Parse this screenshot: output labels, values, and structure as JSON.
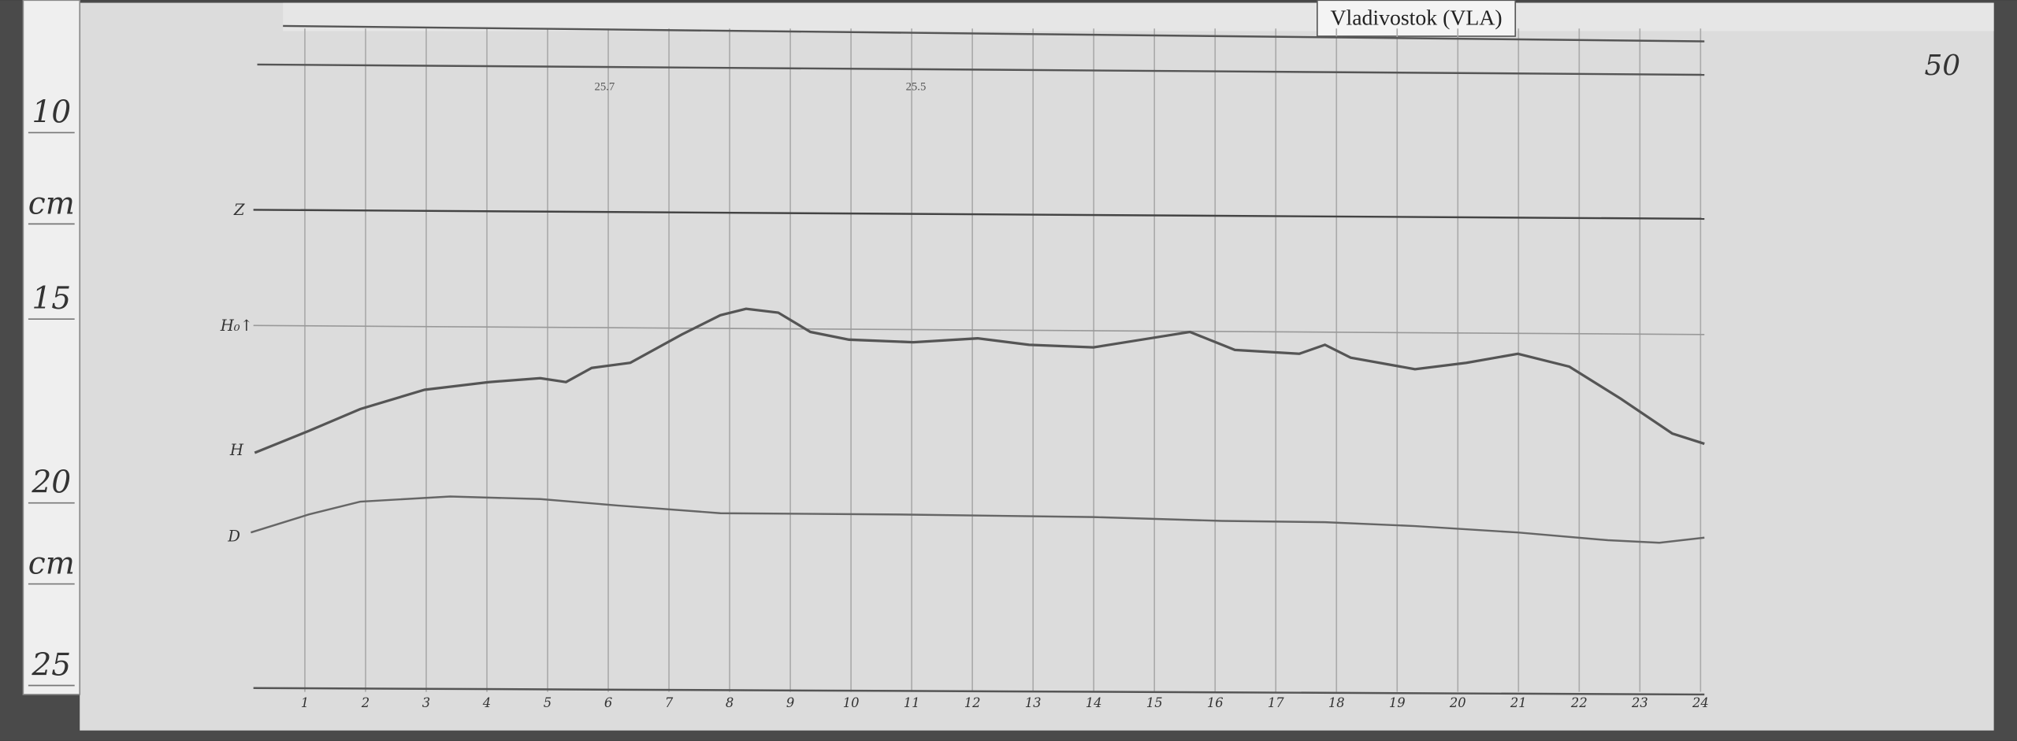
{
  "header": {
    "station": "Vladivostok (VLA)",
    "sheet_number": "50"
  },
  "ruler": {
    "labels": [
      "10",
      "cm",
      "15",
      "20",
      "cm",
      "25"
    ]
  },
  "traces": {
    "labels": [
      "Z",
      "H₀↑",
      "H",
      "D"
    ]
  },
  "baseline_values": [
    "25.7",
    "25.5"
  ],
  "hours": [
    "1",
    "2",
    "3",
    "4",
    "5",
    "6",
    "7",
    "8",
    "9",
    "10",
    "11",
    "12",
    "13",
    "14",
    "15",
    "16",
    "17",
    "18",
    "19",
    "20",
    "21",
    "22",
    "23",
    "24"
  ]
}
